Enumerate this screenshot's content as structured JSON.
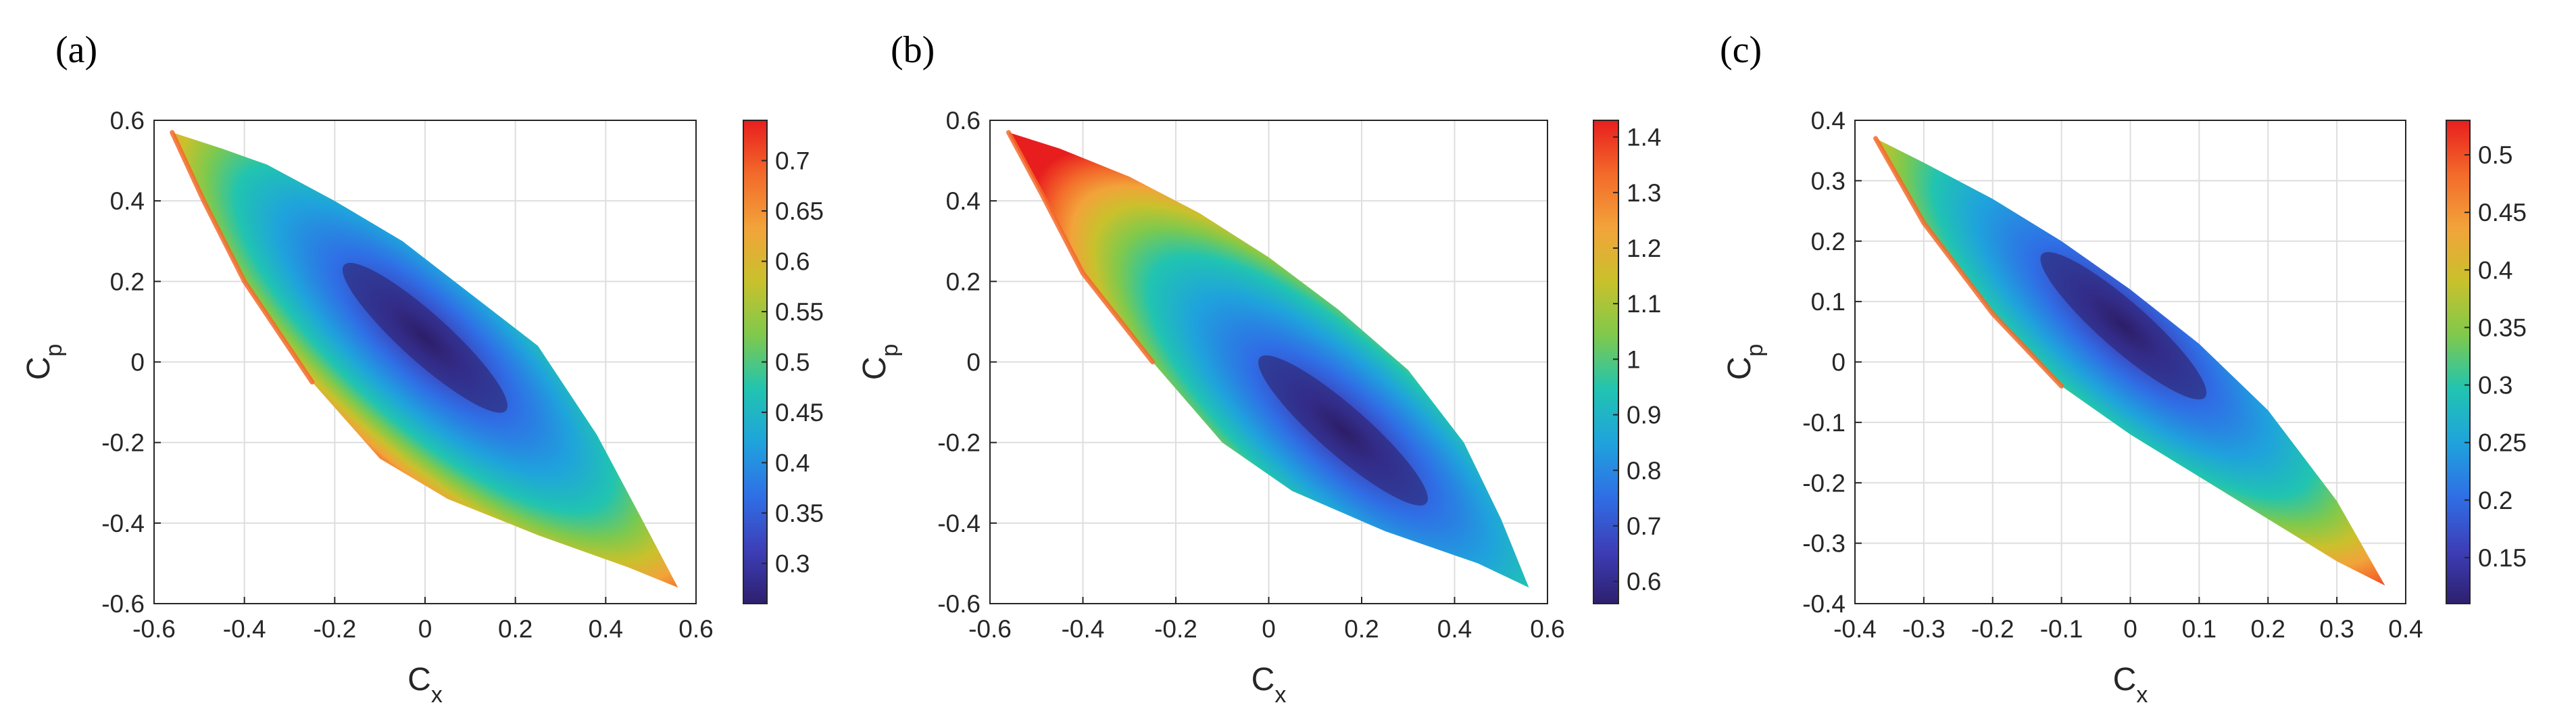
{
  "chart_data": [
    {
      "type": "heatmap",
      "panel": "(a)",
      "xlabel": "C",
      "xlabel_sub": "x",
      "ylabel": "C",
      "ylabel_sub": "p",
      "xlim": [
        -0.6,
        0.6
      ],
      "ylim": [
        -0.6,
        0.6
      ],
      "xticks": [
        "-0.6",
        "-0.4",
        "-0.2",
        "0",
        "0.2",
        "0.4",
        "0.6"
      ],
      "yticks": [
        "-0.6",
        "-0.4",
        "-0.2",
        "0",
        "0.2",
        "0.4",
        "0.6"
      ],
      "grid": true,
      "region_upper": [
        [
          -0.56,
          0.57
        ],
        [
          -0.45,
          0.53
        ],
        [
          -0.35,
          0.49
        ],
        [
          -0.2,
          0.4
        ],
        [
          -0.05,
          0.3
        ],
        [
          0.1,
          0.17
        ],
        [
          0.25,
          0.04
        ],
        [
          0.38,
          -0.18
        ],
        [
          0.48,
          -0.39
        ],
        [
          0.56,
          -0.56
        ]
      ],
      "region_lower": [
        [
          -0.56,
          0.57
        ],
        [
          -0.49,
          0.4
        ],
        [
          -0.4,
          0.2
        ],
        [
          -0.25,
          -0.05
        ],
        [
          -0.1,
          -0.24
        ],
        [
          0.05,
          -0.34
        ],
        [
          0.25,
          -0.43
        ],
        [
          0.45,
          -0.51
        ],
        [
          0.56,
          -0.56
        ]
      ],
      "minimum_center": [
        0.0,
        0.06
      ],
      "colorbar": {
        "min": 0.26,
        "max": 0.74,
        "ticks": [
          0.3,
          0.35,
          0.4,
          0.45,
          0.5,
          0.55,
          0.6,
          0.65,
          0.7
        ],
        "tick_labels": [
          "0.3",
          "0.35",
          "0.4",
          "0.45",
          "0.5",
          "0.55",
          "0.6",
          "0.65",
          "0.7"
        ]
      }
    },
    {
      "type": "heatmap",
      "panel": "(b)",
      "xlabel": "C",
      "xlabel_sub": "x",
      "ylabel": "C",
      "ylabel_sub": "p",
      "xlim": [
        -0.6,
        0.6
      ],
      "ylim": [
        -0.6,
        0.6
      ],
      "xticks": [
        "-0.6",
        "-0.4",
        "-0.2",
        "0",
        "0.2",
        "0.4",
        "0.6"
      ],
      "yticks": [
        "-0.6",
        "-0.4",
        "-0.2",
        "0",
        "0.2",
        "0.4",
        "0.6"
      ],
      "grid": true,
      "region_upper": [
        [
          -0.56,
          0.57
        ],
        [
          -0.45,
          0.53
        ],
        [
          -0.3,
          0.46
        ],
        [
          -0.15,
          0.37
        ],
        [
          0.0,
          0.26
        ],
        [
          0.15,
          0.13
        ],
        [
          0.3,
          -0.02
        ],
        [
          0.42,
          -0.2
        ],
        [
          0.5,
          -0.39
        ],
        [
          0.56,
          -0.56
        ]
      ],
      "region_lower": [
        [
          -0.56,
          0.57
        ],
        [
          -0.49,
          0.42
        ],
        [
          -0.4,
          0.22
        ],
        [
          -0.25,
          0.0
        ],
        [
          -0.1,
          -0.2
        ],
        [
          0.05,
          -0.32
        ],
        [
          0.25,
          -0.42
        ],
        [
          0.45,
          -0.5
        ],
        [
          0.56,
          -0.56
        ]
      ],
      "minimum_center": [
        0.16,
        -0.17
      ],
      "colorbar": {
        "min": 0.56,
        "max": 1.43,
        "ticks": [
          0.6,
          0.7,
          0.8,
          0.9,
          1,
          1.1,
          1.2,
          1.3,
          1.4
        ],
        "tick_labels": [
          "0.6",
          "0.7",
          "0.8",
          "0.9",
          "1",
          "1.1",
          "1.2",
          "1.3",
          "1.4"
        ]
      }
    },
    {
      "type": "heatmap",
      "panel": "(c)",
      "xlabel": "C",
      "xlabel_sub": "x",
      "ylabel": "C",
      "ylabel_sub": "p",
      "xlim": [
        -0.4,
        0.4
      ],
      "ylim": [
        -0.4,
        0.4
      ],
      "xticks": [
        "-0.4",
        "-0.3",
        "-0.2",
        "-0.1",
        "0",
        "0.1",
        "0.2",
        "0.3",
        "0.4"
      ],
      "yticks": [
        "-0.4",
        "-0.3",
        "-0.2",
        "-0.1",
        "0",
        "0.1",
        "0.2",
        "0.3",
        "0.4"
      ],
      "grid": true,
      "region_upper": [
        [
          -0.37,
          0.37
        ],
        [
          -0.3,
          0.33
        ],
        [
          -0.2,
          0.27
        ],
        [
          -0.1,
          0.2
        ],
        [
          0.0,
          0.12
        ],
        [
          0.1,
          0.03
        ],
        [
          0.2,
          -0.08
        ],
        [
          0.3,
          -0.23
        ],
        [
          0.37,
          -0.37
        ]
      ],
      "region_lower": [
        [
          -0.37,
          0.37
        ],
        [
          -0.3,
          0.23
        ],
        [
          -0.2,
          0.08
        ],
        [
          -0.1,
          -0.04
        ],
        [
          0.0,
          -0.12
        ],
        [
          0.1,
          -0.19
        ],
        [
          0.2,
          -0.26
        ],
        [
          0.3,
          -0.33
        ],
        [
          0.37,
          -0.37
        ]
      ],
      "minimum_center": [
        -0.01,
        0.06
      ],
      "colorbar": {
        "min": 0.11,
        "max": 0.53,
        "ticks": [
          0.15,
          0.2,
          0.25,
          0.3,
          0.35,
          0.4,
          0.45,
          0.5
        ],
        "tick_labels": [
          "0.15",
          "0.2",
          "0.25",
          "0.3",
          "0.35",
          "0.4",
          "0.45",
          "0.5"
        ]
      }
    }
  ]
}
